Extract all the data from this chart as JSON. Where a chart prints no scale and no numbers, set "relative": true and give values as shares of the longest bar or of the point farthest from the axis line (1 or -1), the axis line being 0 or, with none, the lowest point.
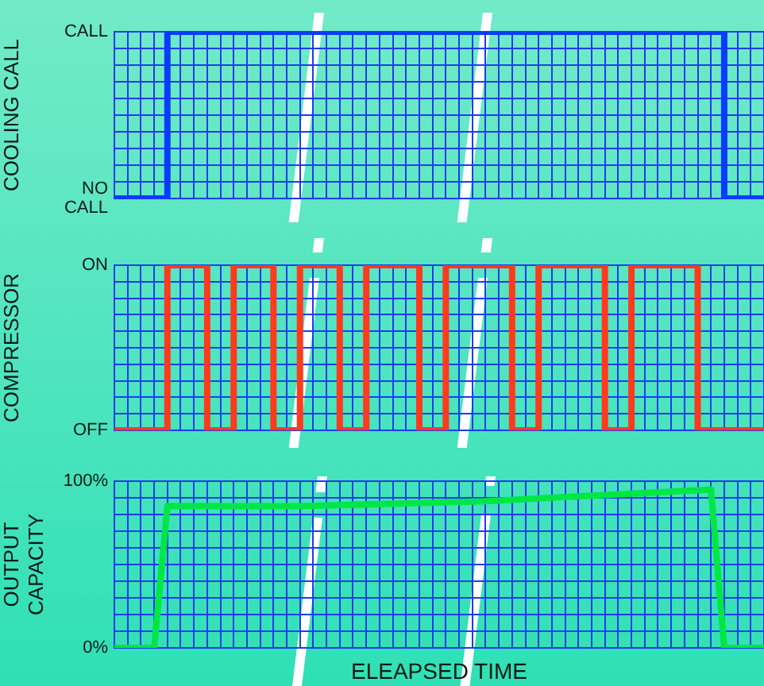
{
  "chart_data": [
    {
      "type": "step",
      "ylabel": "COOLING CALL",
      "categories": [
        null,
        null,
        null,
        null,
        null,
        null,
        null,
        null,
        null,
        null,
        null,
        null,
        null,
        null,
        null,
        null,
        null,
        null,
        null,
        null,
        null,
        null,
        null,
        null,
        null,
        null,
        null,
        null,
        null,
        null,
        null,
        null,
        null,
        null,
        null,
        null,
        null,
        null,
        null,
        null,
        null,
        null,
        null,
        null,
        null,
        null,
        null,
        null,
        null,
        null
      ],
      "series": [
        {
          "color": "#0a3cff",
          "values": [
            0,
            0,
            0,
            0,
            1,
            1,
            1,
            1,
            1,
            1,
            1,
            1,
            1,
            1,
            1,
            1,
            1,
            1,
            1,
            1,
            1,
            1,
            1,
            1,
            1,
            1,
            1,
            1,
            1,
            1,
            1,
            1,
            1,
            1,
            1,
            1,
            1,
            1,
            1,
            1,
            1,
            1,
            1,
            1,
            1,
            1,
            0,
            0,
            0,
            0
          ]
        }
      ],
      "relative": true,
      "annotations": [
        "CALL",
        "NO CALL"
      ],
      "grid": true,
      "legend": false,
      "tick_labels": "y"
    },
    {
      "type": "step",
      "ylabel": "COMPRESSOR",
      "categories": [
        null,
        null,
        null,
        null,
        null,
        null,
        null,
        null,
        null,
        null,
        null,
        null,
        null,
        null,
        null,
        null,
        null,
        null,
        null,
        null,
        null,
        null,
        null,
        null,
        null,
        null,
        null,
        null,
        null,
        null,
        null,
        null,
        null,
        null,
        null,
        null,
        null,
        null,
        null,
        null,
        null,
        null,
        null,
        null,
        null,
        null,
        null,
        null,
        null,
        null
      ],
      "series": [
        {
          "color": "#ff3a1e",
          "values": [
            0,
            0,
            0,
            0,
            1,
            1,
            1,
            0,
            0,
            1,
            1,
            1,
            0,
            0,
            1,
            1,
            1,
            0,
            0,
            1,
            1,
            1,
            1,
            0,
            0,
            1,
            1,
            1,
            1,
            1,
            0,
            0,
            1,
            1,
            1,
            1,
            1,
            0,
            0,
            1,
            1,
            1,
            1,
            1,
            0,
            0,
            0,
            0,
            0,
            0
          ]
        }
      ],
      "relative": true,
      "annotations": [
        "ON",
        "OFF"
      ],
      "grid": true,
      "legend": false,
      "tick_labels": "y"
    },
    {
      "type": "line",
      "ylabel": "OUTPUT\nCAPACITY",
      "xlabel": "ELEAPSED TIME",
      "categories": [
        null,
        null,
        null,
        null,
        null,
        null,
        null,
        null,
        null,
        null,
        null,
        null,
        null,
        null,
        null,
        null,
        null,
        null,
        null,
        null,
        null,
        null,
        null,
        null,
        null,
        null,
        null,
        null,
        null,
        null,
        null,
        null,
        null,
        null,
        null,
        null,
        null,
        null,
        null,
        null,
        null,
        null,
        null,
        null,
        null,
        null,
        null,
        null,
        null,
        null
      ],
      "series": [
        {
          "color": "#00e646",
          "values": [
            0,
            null,
            null,
            0,
            85,
            null,
            null,
            null,
            null,
            null,
            null,
            null,
            null,
            null,
            85,
            null,
            null,
            null,
            null,
            null,
            null,
            null,
            null,
            null,
            null,
            null,
            null,
            null,
            88,
            null,
            null,
            null,
            null,
            null,
            null,
            null,
            null,
            null,
            null,
            null,
            null,
            null,
            null,
            null,
            null,
            95,
            0,
            null,
            null,
            0
          ]
        }
      ],
      "ylim": [
        0,
        100
      ],
      "yticks": [
        {
          "value": 0,
          "label": "0%"
        },
        {
          "value": 10,
          "label": null
        },
        {
          "value": 20,
          "label": null
        },
        {
          "value": 30,
          "label": null
        },
        {
          "value": 40,
          "label": null
        },
        {
          "value": 50,
          "label": null
        },
        {
          "value": 60,
          "label": null
        },
        {
          "value": 70,
          "label": null
        },
        {
          "value": 80,
          "label": null
        },
        {
          "value": 90,
          "label": null
        },
        {
          "value": 100,
          "label": "100%"
        }
      ],
      "grid": true,
      "legend": false,
      "tick_labels": "y"
    }
  ]
}
